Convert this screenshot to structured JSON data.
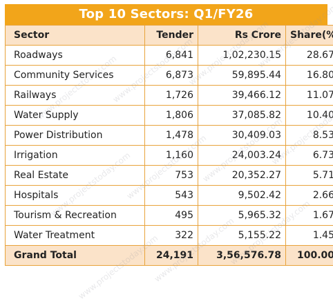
{
  "title": "Top 10 Sectors: Q1/FY26",
  "columns": [
    "Sector",
    "Tender",
    "Rs Crore",
    "Share(%)"
  ],
  "rows": [
    [
      "Roadways",
      "6,841",
      "1,02,230.15",
      "28.67"
    ],
    [
      "Community Services",
      "6,873",
      "59,895.44",
      "16.80"
    ],
    [
      "Railways",
      "1,726",
      "39,466.12",
      "11.07"
    ],
    [
      "Water Supply",
      "1,806",
      "37,085.82",
      "10.40"
    ],
    [
      "Power Distribution",
      "1,478",
      "30,409.03",
      "8.53"
    ],
    [
      "Irrigation",
      "1,160",
      "24,003.24",
      "6.73"
    ],
    [
      "Real Estate",
      "753",
      "20,352.27",
      "5.71"
    ],
    [
      "Hospitals",
      "543",
      "9,502.42",
      "2.66"
    ],
    [
      "Tourism & Recreation",
      "495",
      "5,965.32",
      "1.67"
    ],
    [
      "Water Treatment",
      "322",
      "5,155.22",
      "1.45"
    ]
  ],
  "total": [
    "Grand Total",
    "24,191",
    "3,56,576.78",
    "100.00"
  ],
  "watermark": "www.projectstoday.com",
  "colors": {
    "title_bg": "#f2a51a",
    "header_bg": "#fbe3c9",
    "border": "#e8a33b"
  }
}
